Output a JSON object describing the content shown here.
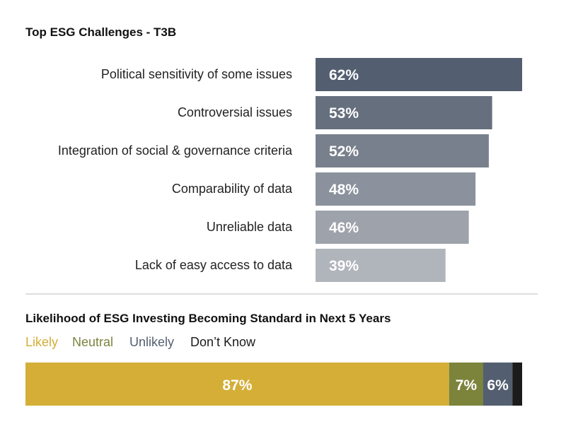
{
  "chart_data": [
    {
      "type": "bar",
      "orientation": "horizontal",
      "title": "Top ESG Challenges - T3B",
      "categories": [
        "Political sensitivity of some issues",
        "Controversial issues",
        "Integration of social & governance criteria",
        "Comparability of data",
        "Unreliable data",
        "Lack of easy access to data"
      ],
      "values": [
        62,
        53,
        52,
        48,
        46,
        39
      ],
      "value_labels": [
        "62%",
        "53%",
        "52%",
        "48%",
        "46%",
        "39%"
      ],
      "colors": [
        "#535f70",
        "#666f7d",
        "#78808d",
        "#8b929d",
        "#9da2ab",
        "#b0b4bb"
      ],
      "grid": false
    },
    {
      "type": "bar",
      "orientation": "horizontal-stacked",
      "title": "Likelihood of ESG Investing Becoming Standard in Next 5 Years",
      "legend_position": "top-left",
      "series": [
        {
          "name": "Likely",
          "value": 87,
          "label": "87%",
          "color": "#d4ae37"
        },
        {
          "name": "Neutral",
          "value": 7,
          "label": "7%",
          "color": "#7c843c"
        },
        {
          "name": "Unlikely",
          "value": 6,
          "label": "6%",
          "color": "#535f70"
        },
        {
          "name": "Don’t Know",
          "value": 2,
          "label": "",
          "color": "#1b1b1b"
        }
      ]
    }
  ],
  "colors": {
    "divider": "#bdbdbd",
    "title_text": "#111111",
    "label_text": "#222222",
    "value_text": "#ffffff"
  }
}
